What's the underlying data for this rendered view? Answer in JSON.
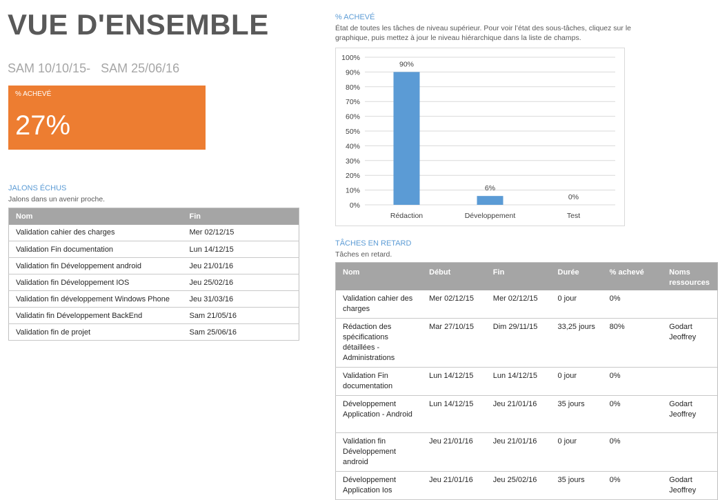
{
  "header": {
    "title": "VUE D'ENSEMBLE",
    "date_range": "SAM 10/10/15-   SAM 25/06/16"
  },
  "kpi": {
    "label": "% ACHEVÉ",
    "value": "27%"
  },
  "milestones": {
    "title": "JALONS ÉCHUS",
    "subtitle": "Jalons dans un avenir proche.",
    "columns": [
      "Nom",
      "Fin"
    ],
    "rows": [
      [
        "Validation cahier des charges",
        "Mer 02/12/15"
      ],
      [
        "Validation Fin documentation",
        "Lun 14/12/15"
      ],
      [
        "Validation fin Développement android",
        "Jeu 21/01/16"
      ],
      [
        "Validation fin Développement IOS",
        "Jeu 25/02/16"
      ],
      [
        "Validation fin développement Windows Phone",
        "Jeu 31/03/16"
      ],
      [
        "Validatin fin Développement BackEnd",
        "Sam 21/05/16"
      ],
      [
        "Validation fin de projet",
        "Sam 25/06/16"
      ]
    ]
  },
  "chart_section": {
    "title": "% ACHEVÉ",
    "subtitle": "État de toutes les tâches de niveau supérieur. Pour voir l’état des sous-tâches, cliquez sur le graphique, puis mettez à jour le niveau hiérarchique dans la liste de champs."
  },
  "chart_data": {
    "type": "bar",
    "categories": [
      "Rédaction",
      "Développement",
      "Test"
    ],
    "values": [
      90,
      6,
      0
    ],
    "data_labels": [
      "90%",
      "6%",
      "0%"
    ],
    "title": "",
    "xlabel": "",
    "ylabel": "",
    "ylim": [
      0,
      100
    ],
    "y_ticks": [
      "0%",
      "10%",
      "20%",
      "30%",
      "40%",
      "50%",
      "60%",
      "70%",
      "80%",
      "90%",
      "100%"
    ],
    "grid": true,
    "color": "#5b9bd5"
  },
  "late_tasks": {
    "title": "TÂCHES EN RETARD",
    "subtitle": "Tâches en retard.",
    "columns": [
      "Nom",
      "Début",
      "Fin",
      "Durée",
      "% achevé",
      "Noms ressources"
    ],
    "rows": [
      [
        "Validation cahier des charges",
        "Mer 02/12/15",
        "Mer 02/12/15",
        "0 jour",
        "0%",
        ""
      ],
      [
        "Rédaction des spécifications détaillées - Administrations",
        "Mar 27/10/15",
        "Dim 29/11/15",
        "33,25 jours",
        "80%",
        "Godart Jeoffrey"
      ],
      [
        "Validation Fin documentation",
        "Lun 14/12/15",
        "Lun 14/12/15",
        "0 jour",
        "0%",
        ""
      ],
      [
        "Développement Application - Android",
        "Lun 14/12/15",
        "Jeu 21/01/16",
        "35 jours",
        "0%",
        "Godart Jeoffrey"
      ],
      [
        "Validation fin Développement android",
        "Jeu 21/01/16",
        "Jeu 21/01/16",
        "0 jour",
        "0%",
        ""
      ],
      [
        "Développement Application Ios",
        "Jeu 21/01/16",
        "Jeu 25/02/16",
        "35 jours",
        "0%",
        "Godart Jeoffrey"
      ]
    ]
  }
}
